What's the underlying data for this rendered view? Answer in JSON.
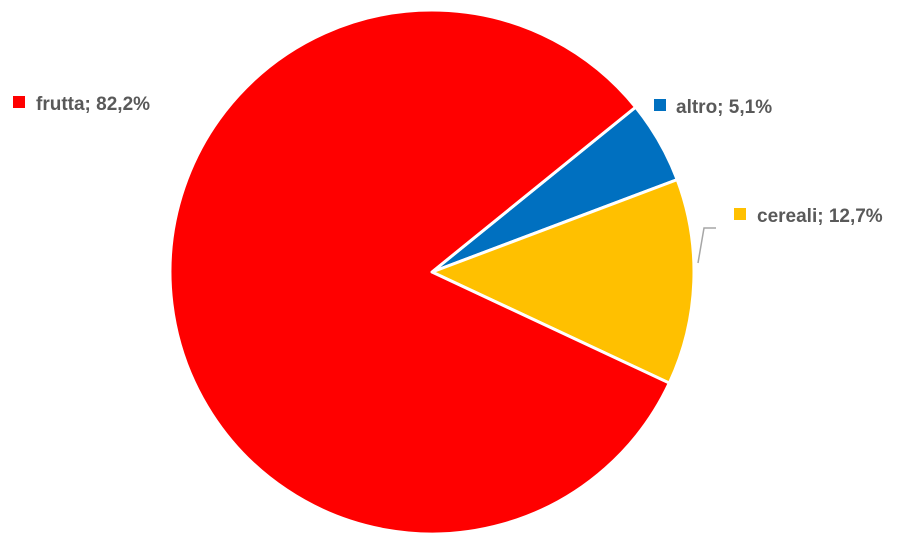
{
  "chart_data": {
    "type": "pie",
    "title": "",
    "slices": [
      {
        "label": "altro",
        "value": 5.1,
        "display": "altro; 5,1%",
        "color": "#0070C0"
      },
      {
        "label": "cereali",
        "value": 12.7,
        "display": "cereali; 12,7%",
        "color": "#FFC000"
      },
      {
        "label": "frutta",
        "value": 82.2,
        "display": "frutta; 82,2%",
        "color": "#FF0000"
      }
    ],
    "start_angle_deg": 51,
    "direction": "clockwise",
    "slice_border_color": "#FFFFFF",
    "label_color": "#595959",
    "leader_line_color": "#A6A6A6"
  }
}
